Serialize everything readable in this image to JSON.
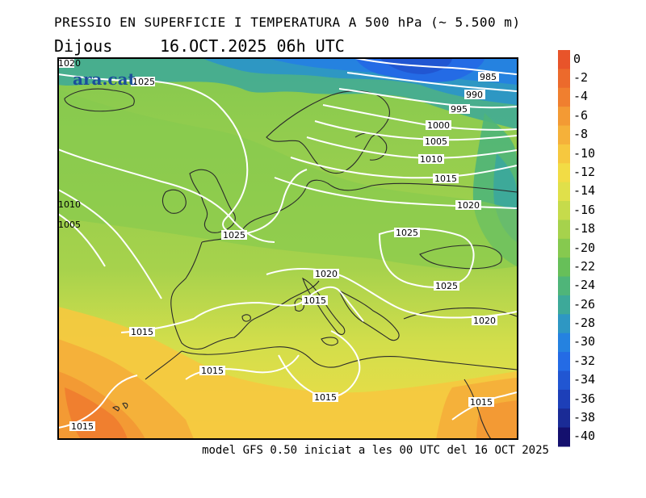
{
  "title": "PRESSIO EN SUPERFICIE I TEMPERATURA A 500 hPa (~ 5.500 m)",
  "day_label": "Dijous",
  "date_label": "16.OCT.2025 06h UTC",
  "footer": "model GFS 0.50 iniciat a les 00 UTC del 16 OCT 2025",
  "logo_text": "ara.cat",
  "colorbar": {
    "labels": [
      "0",
      "-2",
      "-4",
      "-6",
      "-8",
      "-10",
      "-12",
      "-14",
      "-16",
      "-18",
      "-20",
      "-22",
      "-24",
      "-26",
      "-28",
      "-30",
      "-32",
      "-34",
      "-36",
      "-38",
      "-40"
    ],
    "colors": [
      "#e8542a",
      "#ec6a2c",
      "#f07f2f",
      "#f39a34",
      "#f5b13a",
      "#f6c83f",
      "#f2dc45",
      "#e0e04a",
      "#c6db4b",
      "#a6d24c",
      "#86c94f",
      "#67bf59",
      "#4fb579",
      "#3da999",
      "#2e97c3",
      "#2582e0",
      "#246be5",
      "#2156d2",
      "#1d3fb8",
      "#1a2b96",
      "#14106e"
    ]
  },
  "isobar_labels": [
    {
      "text": "1025"
    },
    {
      "text": "1020"
    },
    {
      "text": "1010"
    },
    {
      "text": "1005"
    },
    {
      "text": "985"
    },
    {
      "text": "990"
    },
    {
      "text": "995"
    },
    {
      "text": "1000"
    },
    {
      "text": "1005"
    },
    {
      "text": "1010"
    },
    {
      "text": "1015"
    },
    {
      "text": "1020"
    },
    {
      "text": "1025"
    },
    {
      "text": "1025"
    },
    {
      "text": "1020"
    },
    {
      "text": "1025"
    },
    {
      "text": "1015"
    },
    {
      "text": "1020"
    },
    {
      "text": "1015"
    },
    {
      "text": "1015"
    },
    {
      "text": "1015"
    },
    {
      "text": "1015"
    },
    {
      "text": "1015"
    }
  ]
}
